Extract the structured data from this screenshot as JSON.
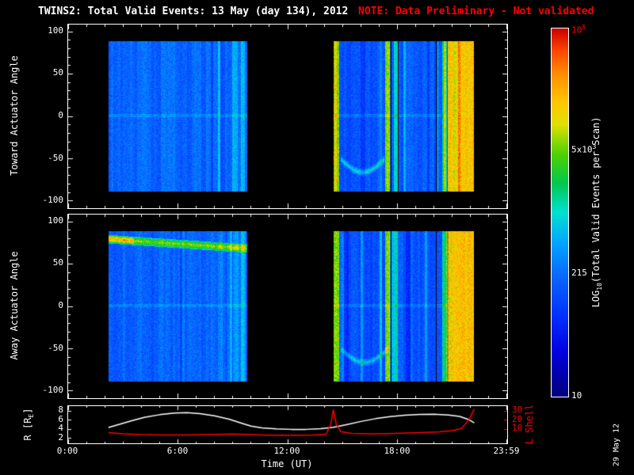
{
  "colors": {
    "background": "#000000",
    "foreground": "#ffffff",
    "red": "#ff0000"
  },
  "chart_data": {
    "type": "heatmap",
    "title": "TWINS2: Total Valid Events: 13 May (day 134), 2012",
    "note": "NOTE: Data Preliminary - Not validated",
    "stamp": "29 May 12",
    "time_axis": {
      "range_hours": [
        0,
        24
      ],
      "tick_hours": [
        0,
        6,
        12,
        18,
        23.983
      ],
      "tick_labels": [
        "0:00",
        "6:00",
        "12:00",
        "18:00",
        "23:59"
      ],
      "xlabel": "Time (UT)"
    },
    "spectro_panels": [
      {
        "name": "toward",
        "ylabel": "Toward Actuator Angle",
        "ang_range": [
          -108,
          108
        ],
        "yticks": [
          100,
          50,
          0,
          -50,
          -100
        ],
        "seed": 11,
        "blocks": [
          {
            "t": [
              2.2,
              9.8
            ],
            "ang": [
              -88,
              88
            ],
            "base": 2.28
          },
          {
            "t": [
              14.5,
              22.2
            ],
            "ang": [
              -88,
              88
            ],
            "base": 2.18
          }
        ],
        "features": [
          {
            "kind": "hline",
            "t": [
              2.2,
              22.2
            ],
            "ang": 1,
            "half": 2,
            "dv": 0.22
          },
          {
            "kind": "vband",
            "t": [
              8.95,
              9.25
            ],
            "dv": 0.4
          },
          {
            "kind": "vband",
            "t": [
              9.45,
              9.68
            ],
            "dv": 0.65
          },
          {
            "kind": "vband",
            "t": [
              14.52,
              14.8
            ],
            "dv": 1.7
          },
          {
            "kind": "vband",
            "t": [
              17.35,
              17.6
            ],
            "dv": 1.75
          },
          {
            "kind": "gap",
            "t": [
              17.63,
              17.69
            ]
          },
          {
            "kind": "vband",
            "t": [
              17.8,
              18.0
            ],
            "dv": 1.05
          },
          {
            "kind": "gap",
            "t": [
              18.02,
              18.08
            ]
          },
          {
            "kind": "arc",
            "t": [
              14.9,
              17.3
            ],
            "angc": -50,
            "amp": -16,
            "half": 5,
            "dv": 0.85
          },
          {
            "kind": "gap",
            "t": [
              20.1,
              20.16
            ]
          },
          {
            "kind": "vband",
            "t": [
              20.45,
              20.7
            ],
            "dv": 1.2
          },
          {
            "kind": "rect",
            "t": [
              20.75,
              22.2
            ],
            "ang": [
              -88,
              88
            ],
            "v": 4.2,
            "noise": 0.55
          }
        ]
      },
      {
        "name": "away",
        "ylabel": "Away Actuator Angle",
        "ang_range": [
          -108,
          108
        ],
        "yticks": [
          100,
          50,
          0,
          -50,
          -100
        ],
        "seed": 77,
        "blocks": [
          {
            "t": [
              2.2,
              9.8
            ],
            "ang": [
              -88,
              88
            ],
            "base": 2.25
          },
          {
            "t": [
              14.5,
              22.2
            ],
            "ang": [
              -88,
              88
            ],
            "base": 2.18
          }
        ],
        "features": [
          {
            "kind": "hline",
            "t": [
              2.2,
              22.2
            ],
            "ang": 1,
            "half": 2,
            "dv": 0.22
          },
          {
            "kind": "hband",
            "t": [
              2.2,
              9.8
            ],
            "ang0": 79,
            "ang1": 68,
            "half": 5,
            "dv": 1.5
          },
          {
            "kind": "hband",
            "t": [
              2.2,
              3.6
            ],
            "ang0": 80,
            "ang1": 77,
            "half": 4,
            "dv": 0.7
          },
          {
            "kind": "vband",
            "t": [
              9.0,
              9.3
            ],
            "dv": 0.35
          },
          {
            "kind": "vband",
            "t": [
              9.45,
              9.7
            ],
            "dv": 0.55
          },
          {
            "kind": "vband",
            "t": [
              14.52,
              14.8
            ],
            "dv": 1.7
          },
          {
            "kind": "vband",
            "t": [
              17.35,
              17.6
            ],
            "dv": 1.75
          },
          {
            "kind": "gap",
            "t": [
              17.63,
              17.69
            ]
          },
          {
            "kind": "vband",
            "t": [
              17.8,
              18.0
            ],
            "dv": 1.0
          },
          {
            "kind": "arc",
            "t": [
              14.9,
              17.5
            ],
            "angc": -50,
            "amp": -16,
            "half": 5,
            "dv": 0.75
          },
          {
            "kind": "gap",
            "t": [
              20.1,
              20.16
            ]
          },
          {
            "kind": "vband",
            "t": [
              20.45,
              20.7
            ],
            "dv": 1.2
          },
          {
            "kind": "rect",
            "t": [
              20.75,
              22.2
            ],
            "ang": [
              -88,
              88
            ],
            "v": 4.2,
            "noise": 0.55
          }
        ]
      }
    ],
    "colorbar": {
      "title_prefix": "LOG",
      "title_sub": "10",
      "title_rest": "(Total Valid Events per Scan)",
      "log_range": [
        1,
        5
      ],
      "labels": [
        {
          "frac": 1.0,
          "base": "10",
          "exp": "5",
          "red": true
        },
        {
          "frac": 0.675,
          "base": "5x10",
          "exp": "3"
        },
        {
          "frac": 0.333,
          "text": "215"
        },
        {
          "frac": 0.0,
          "text": "10"
        }
      ],
      "colormap": [
        [
          0.0,
          "#00007d"
        ],
        [
          0.12,
          "#0000e1"
        ],
        [
          0.22,
          "#0032ff"
        ],
        [
          0.32,
          "#0a64ff"
        ],
        [
          0.42,
          "#00a8ff"
        ],
        [
          0.5,
          "#00e1d2"
        ],
        [
          0.58,
          "#00c850"
        ],
        [
          0.66,
          "#50d200"
        ],
        [
          0.74,
          "#e1e100"
        ],
        [
          0.8,
          "#ffc800"
        ],
        [
          0.88,
          "#ff8c00"
        ],
        [
          0.94,
          "#ff4600"
        ],
        [
          1.0,
          "#cd0000"
        ]
      ]
    },
    "line_panel": {
      "r_label_main": "R [R",
      "r_label_sub": "E",
      "r_label_end": "]",
      "l_label": "L Shell",
      "r_axis": {
        "range": [
          1,
          9
        ],
        "ticks": [
          2,
          4,
          6,
          8
        ]
      },
      "l_axis": {
        "range": [
          -5,
          35
        ],
        "ticks": [
          10,
          20,
          30
        ]
      },
      "r_series": [
        [
          2.2,
          4.4
        ],
        [
          2.8,
          5.1
        ],
        [
          3.5,
          5.9
        ],
        [
          4.2,
          6.6
        ],
        [
          5,
          7.15
        ],
        [
          5.8,
          7.5
        ],
        [
          6.5,
          7.6
        ],
        [
          7.2,
          7.4
        ],
        [
          8,
          6.9
        ],
        [
          8.8,
          6.2
        ],
        [
          9.5,
          5.3
        ],
        [
          10,
          4.7
        ],
        [
          10.6,
          4.3
        ],
        [
          11.4,
          4.1
        ],
        [
          12.2,
          4.0
        ],
        [
          13,
          4.0
        ],
        [
          13.8,
          4.15
        ],
        [
          14.5,
          4.45
        ],
        [
          15.2,
          5.0
        ],
        [
          16,
          5.7
        ],
        [
          16.8,
          6.3
        ],
        [
          17.6,
          6.75
        ],
        [
          18.4,
          7.05
        ],
        [
          19.2,
          7.2
        ],
        [
          20,
          7.25
        ],
        [
          20.8,
          7.1
        ],
        [
          21.4,
          6.8
        ],
        [
          21.9,
          6.1
        ],
        [
          22.2,
          5.4
        ]
      ],
      "l_series": [
        [
          2.2,
          6.5
        ],
        [
          3,
          5.2
        ],
        [
          4,
          4.3
        ],
        [
          5,
          4.0
        ],
        [
          6,
          4.0
        ],
        [
          7,
          4.2
        ],
        [
          8,
          4.6
        ],
        [
          9,
          5.0
        ],
        [
          9.8,
          4.6
        ],
        [
          10.6,
          4.0
        ],
        [
          11.5,
          3.7
        ],
        [
          12.5,
          3.7
        ],
        [
          13.4,
          4.0
        ],
        [
          14.1,
          4.8
        ],
        [
          14.35,
          15
        ],
        [
          14.5,
          31
        ],
        [
          14.65,
          16
        ],
        [
          14.9,
          7.5
        ],
        [
          15.5,
          5.6
        ],
        [
          16.5,
          5.2
        ],
        [
          17.5,
          5.5
        ],
        [
          18.5,
          6.0
        ],
        [
          19.5,
          6.6
        ],
        [
          20.3,
          7.3
        ],
        [
          21,
          8.6
        ],
        [
          21.5,
          11
        ],
        [
          21.9,
          20
        ],
        [
          22.2,
          32
        ]
      ]
    }
  }
}
